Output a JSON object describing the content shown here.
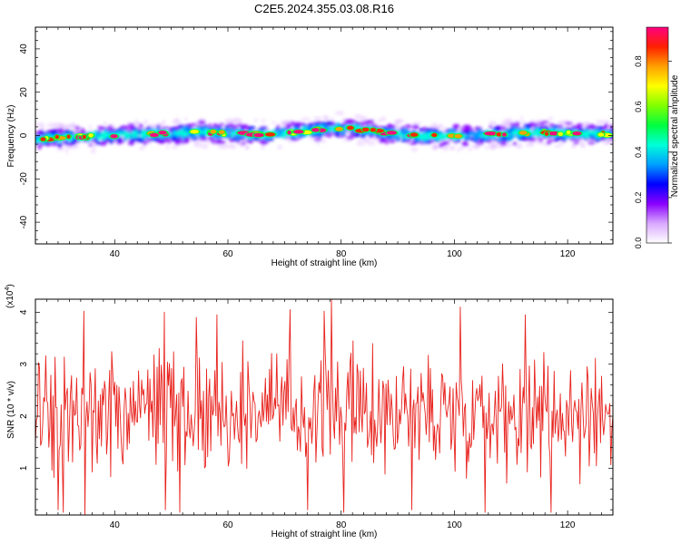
{
  "title": "C2E5.2024.355.03.08.R16",
  "chart_data": [
    {
      "type": "heatmap",
      "xlabel": "Height of straight line (km)",
      "ylabel": "Frequency (Hz)",
      "xlim": [
        26,
        128
      ],
      "ylim": [
        -50,
        50
      ],
      "xticks": [
        "40",
        "60",
        "80",
        "100",
        "120"
      ],
      "yticks": [
        "-40",
        "-20",
        "0",
        "20",
        "40"
      ],
      "colorbar": {
        "label": "Normalized spectral amplitude",
        "range": [
          0,
          0.95
        ],
        "ticks": [
          "0.0",
          "0.2",
          "0.4",
          "0.6",
          "0.8"
        ],
        "colors": [
          "#ffffff",
          "#d9a8ff",
          "#8a00ff",
          "#0000ff",
          "#00a0ff",
          "#00ffd8",
          "#00ff40",
          "#80ff00",
          "#ffff00",
          "#ffa000",
          "#ff2000",
          "#ff0080"
        ]
      },
      "band": {
        "center_hz": [
          [
            26,
            -1.5
          ],
          [
            35,
            -0.5
          ],
          [
            45,
            0.5
          ],
          [
            55,
            1.5
          ],
          [
            65,
            0.5
          ],
          [
            72,
            1.5
          ],
          [
            80,
            3.5
          ],
          [
            85,
            2.5
          ],
          [
            90,
            0.5
          ],
          [
            95,
            -0.5
          ],
          [
            100,
            0.0
          ],
          [
            108,
            0.5
          ],
          [
            115,
            1.5
          ],
          [
            122,
            1.0
          ],
          [
            128,
            0.5
          ]
        ],
        "half_width_hz": 2.5
      }
    },
    {
      "type": "line",
      "xlabel": "Height of straight line (km)",
      "ylabel": "SNR (10 * v/v)",
      "yscale_label": "(x10",
      "yscale_exp": "4",
      "xlim": [
        26,
        128
      ],
      "ylim": [
        0.1,
        4.25
      ],
      "xticks": [
        "40",
        "60",
        "80",
        "100",
        "120"
      ],
      "yticks": [
        "1",
        "2",
        "3",
        "4"
      ],
      "color": "#e8231e",
      "baseline": 2.1,
      "peaks": [
        [
          34.5,
          4.02
        ],
        [
          48.8,
          4.0
        ],
        [
          54.5,
          3.9
        ],
        [
          58.0,
          3.95
        ],
        [
          71.0,
          4.05
        ],
        [
          77.0,
          4.02
        ],
        [
          78.2,
          4.25
        ],
        [
          101.0,
          4.1
        ],
        [
          112.5,
          3.95
        ]
      ],
      "dips": [
        [
          30.0,
          0.2
        ],
        [
          31.0,
          0.15
        ],
        [
          34.8,
          0.1
        ],
        [
          49.0,
          0.2
        ],
        [
          51.5,
          0.15
        ],
        [
          74.0,
          0.2
        ],
        [
          80.5,
          0.15
        ],
        [
          92.5,
          0.2
        ],
        [
          105.5,
          0.15
        ],
        [
          117.0,
          0.15
        ]
      ]
    }
  ]
}
